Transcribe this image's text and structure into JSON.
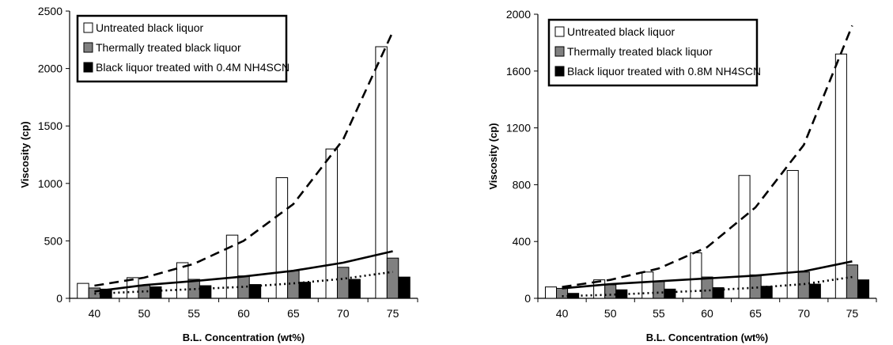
{
  "chart_data": [
    {
      "type": "bar",
      "title": "",
      "xlabel": "B.L. Concentration (wt%)",
      "ylabel": "Viscosity (cp)",
      "categories": [
        "40",
        "50",
        "55",
        "60",
        "65",
        "70",
        "75"
      ],
      "ylim": [
        0,
        2500
      ],
      "yticks": [
        "0",
        "500",
        "1000",
        "1500",
        "2000",
        "2500"
      ],
      "legend_position": "top-left",
      "series": [
        {
          "name": "Untreated black liquor",
          "color": "#ffffff",
          "values": [
            130,
            180,
            310,
            550,
            1050,
            1300,
            2190
          ]
        },
        {
          "name": "Thermally treated black liquor",
          "color": "#808080",
          "values": [
            90,
            115,
            165,
            195,
            240,
            270,
            350
          ]
        },
        {
          "name": "Black liquor treated with 0.4M NH4SCN",
          "color": "#000000",
          "values": [
            80,
            100,
            110,
            120,
            140,
            165,
            185
          ]
        }
      ],
      "trendlines": [
        {
          "series": "Untreated black liquor",
          "style": "dashed",
          "values": [
            110,
            180,
            300,
            500,
            820,
            1380,
            2320
          ]
        },
        {
          "series": "Thermally treated black liquor",
          "style": "solid",
          "values": [
            60,
            115,
            150,
            190,
            240,
            310,
            410
          ]
        },
        {
          "series": "Black liquor treated with 0.4M NH4SCN",
          "style": "dotted",
          "values": [
            40,
            60,
            80,
            100,
            130,
            170,
            230
          ]
        }
      ]
    },
    {
      "type": "bar",
      "title": "",
      "xlabel": "B.L. Concentration (wt%)",
      "ylabel": "Viscosity (cp)",
      "categories": [
        "40",
        "50",
        "55",
        "60",
        "65",
        "70",
        "75"
      ],
      "ylim": [
        0,
        2000
      ],
      "yticks": [
        "0",
        "400",
        "800",
        "1200",
        "1600",
        "2000"
      ],
      "legend_position": "top-left",
      "series": [
        {
          "name": "Untreated black liquor",
          "color": "#ffffff",
          "values": [
            80,
            130,
            185,
            320,
            865,
            900,
            1720
          ]
        },
        {
          "name": "Thermally treated black liquor",
          "color": "#808080",
          "values": [
            70,
            95,
            120,
            150,
            165,
            185,
            235
          ]
        },
        {
          "name": "Black liquor treated with 0.8M NH4SCN",
          "color": "#000000",
          "values": [
            35,
            60,
            65,
            75,
            85,
            100,
            130
          ]
        }
      ],
      "trendlines": [
        {
          "series": "Untreated black liquor",
          "style": "dashed",
          "values": [
            80,
            130,
            210,
            360,
            640,
            1080,
            1920
          ]
        },
        {
          "series": "Thermally treated black liquor",
          "style": "solid",
          "values": [
            70,
            100,
            120,
            140,
            160,
            190,
            260
          ]
        },
        {
          "series": "Black liquor treated with 0.8M NH4SCN",
          "style": "dotted",
          "values": [
            15,
            25,
            40,
            55,
            75,
            100,
            150
          ]
        }
      ]
    }
  ]
}
